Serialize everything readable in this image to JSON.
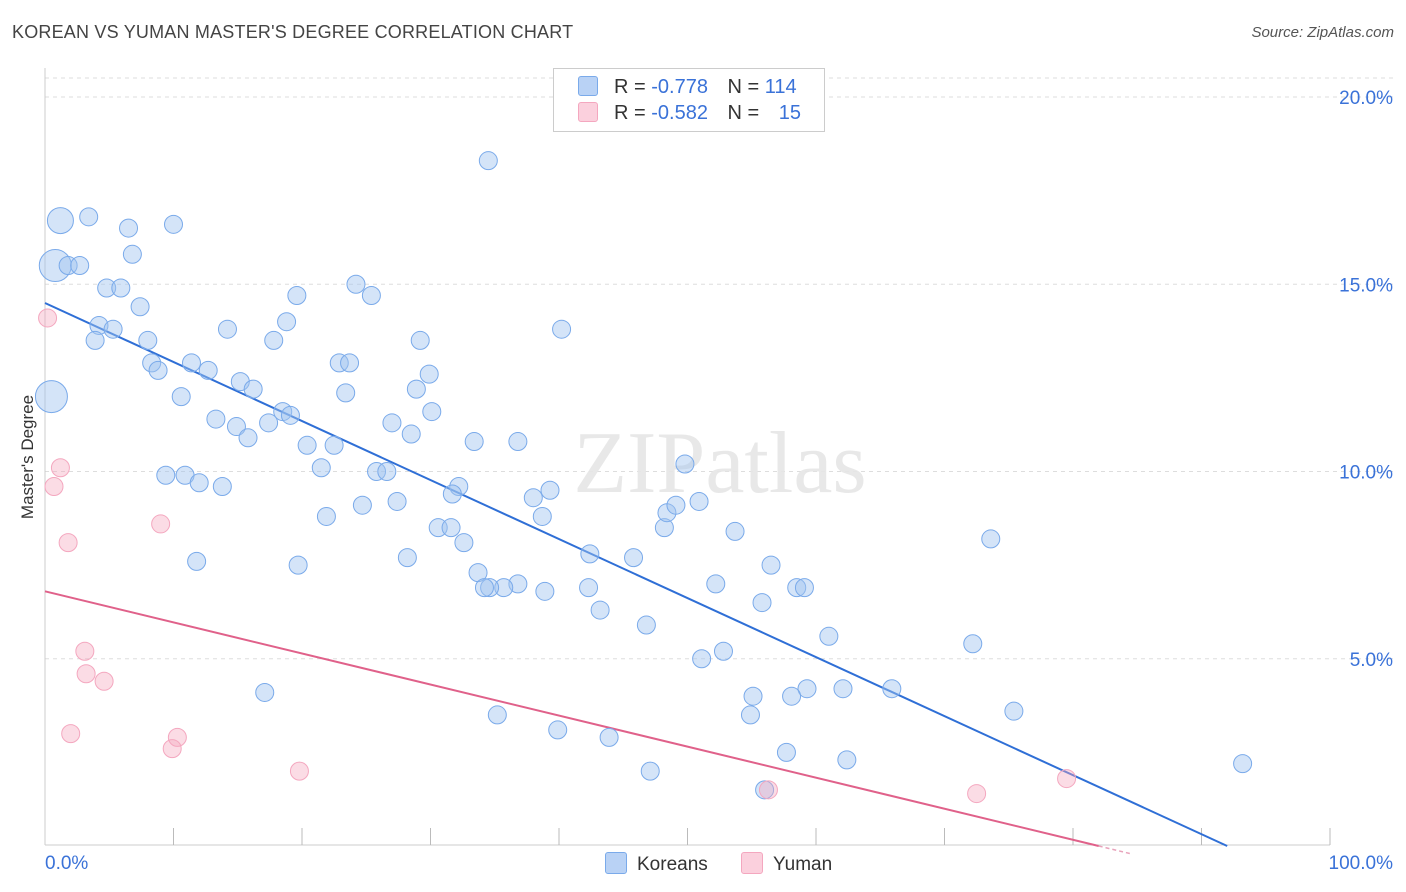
{
  "title": "KOREAN VS YUMAN MASTER'S DEGREE CORRELATION CHART",
  "source": "Source: ZipAtlas.com",
  "watermark": "ZIPatlas",
  "legend_top": {
    "rows": [
      {
        "r_label": "R =",
        "r_value": "-0.778",
        "n_label": "N =",
        "n_value": "114"
      },
      {
        "r_label": "R =",
        "r_value": "-0.582",
        "n_label": "N =",
        "n_value": "15"
      }
    ]
  },
  "chart_data": {
    "type": "scatter",
    "title": "KOREAN VS YUMAN MASTER'S DEGREE CORRELATION CHART",
    "xlabel": "",
    "ylabel": "Master's Degree",
    "xlim": [
      0,
      100
    ],
    "ylim": [
      0,
      21
    ],
    "x_tick_labels": [
      "0.0%",
      "100.0%"
    ],
    "y_ticks": [
      5,
      10,
      15,
      20
    ],
    "y_tick_labels": [
      "5.0%",
      "10.0%",
      "15.0%",
      "20.0%"
    ],
    "grid": true,
    "legend_position": "bottom",
    "series": [
      {
        "name": "Koreans",
        "color": "#7aaaea",
        "line_color": "#2f6fd6",
        "r": -0.778,
        "n": 114,
        "trend": {
          "x0": 0,
          "y0": 14.5,
          "x1": 92,
          "y1": 0
        },
        "points": [
          [
            1.2,
            16.7,
            2
          ],
          [
            3.4,
            16.8,
            1
          ],
          [
            6.5,
            16.5,
            1
          ],
          [
            10.0,
            16.6,
            1
          ],
          [
            0.8,
            15.5,
            3
          ],
          [
            1.8,
            15.5,
            1
          ],
          [
            2.7,
            15.5,
            1
          ],
          [
            6.8,
            15.8,
            1
          ],
          [
            4.8,
            14.9,
            1
          ],
          [
            5.9,
            14.9,
            1
          ],
          [
            7.4,
            14.4,
            1
          ],
          [
            4.2,
            13.9,
            1
          ],
          [
            5.3,
            13.8,
            1
          ],
          [
            3.9,
            13.5,
            1
          ],
          [
            8.0,
            13.5,
            1
          ],
          [
            8.3,
            12.9,
            1
          ],
          [
            8.8,
            12.7,
            1
          ],
          [
            11.4,
            12.9,
            1
          ],
          [
            12.7,
            12.7,
            1
          ],
          [
            14.2,
            13.8,
            1
          ],
          [
            15.2,
            12.4,
            1
          ],
          [
            16.2,
            12.2,
            1
          ],
          [
            17.8,
            13.5,
            1
          ],
          [
            19.6,
            14.7,
            1
          ],
          [
            18.8,
            14.0,
            1
          ],
          [
            24.2,
            15.0,
            1
          ],
          [
            25.4,
            14.7,
            1
          ],
          [
            22.9,
            12.9,
            1
          ],
          [
            23.7,
            12.9,
            1
          ],
          [
            23.4,
            12.1,
            1
          ],
          [
            29.2,
            13.5,
            1
          ],
          [
            28.9,
            12.2,
            1
          ],
          [
            0.5,
            12.0,
            3
          ],
          [
            10.6,
            12.0,
            1
          ],
          [
            13.3,
            11.4,
            1
          ],
          [
            14.9,
            11.2,
            1
          ],
          [
            15.8,
            10.9,
            1
          ],
          [
            17.4,
            11.3,
            1
          ],
          [
            18.5,
            11.6,
            1
          ],
          [
            19.1,
            11.5,
            1
          ],
          [
            20.4,
            10.7,
            1
          ],
          [
            22.5,
            10.7,
            1
          ],
          [
            21.5,
            10.1,
            1
          ],
          [
            27.0,
            11.3,
            1
          ],
          [
            28.5,
            11.0,
            1
          ],
          [
            30.1,
            11.6,
            1
          ],
          [
            33.4,
            10.8,
            1
          ],
          [
            36.8,
            10.8,
            1
          ],
          [
            34.5,
            18.3,
            1
          ],
          [
            40.2,
            13.8,
            1
          ],
          [
            9.4,
            9.9,
            1
          ],
          [
            10.9,
            9.9,
            1
          ],
          [
            12.0,
            9.7,
            1
          ],
          [
            13.8,
            9.6,
            1
          ],
          [
            25.8,
            10.0,
            1
          ],
          [
            26.6,
            10.0,
            1
          ],
          [
            32.2,
            9.6,
            1
          ],
          [
            31.7,
            9.4,
            1
          ],
          [
            24.7,
            9.1,
            1
          ],
          [
            27.4,
            9.2,
            1
          ],
          [
            21.9,
            8.8,
            1
          ],
          [
            38.0,
            9.3,
            1
          ],
          [
            39.3,
            9.5,
            1
          ],
          [
            38.7,
            8.8,
            1
          ],
          [
            30.6,
            8.5,
            1
          ],
          [
            31.6,
            8.5,
            1
          ],
          [
            32.6,
            8.1,
            1
          ],
          [
            42.4,
            7.8,
            1
          ],
          [
            45.8,
            7.7,
            1
          ],
          [
            48.2,
            8.5,
            1
          ],
          [
            48.4,
            8.9,
            1
          ],
          [
            49.1,
            9.1,
            1
          ],
          [
            50.9,
            9.2,
            1
          ],
          [
            49.8,
            10.2,
            1
          ],
          [
            53.7,
            8.4,
            1
          ],
          [
            56.5,
            7.5,
            1
          ],
          [
            58.5,
            6.9,
            1
          ],
          [
            59.1,
            6.9,
            1
          ],
          [
            59.3,
            4.2,
            1
          ],
          [
            61.0,
            5.6,
            1
          ],
          [
            52.8,
            5.2,
            1
          ],
          [
            52.2,
            7.0,
            1
          ],
          [
            55.8,
            6.5,
            1
          ],
          [
            46.8,
            5.9,
            1
          ],
          [
            42.3,
            6.9,
            1
          ],
          [
            43.2,
            6.3,
            1
          ],
          [
            38.9,
            6.8,
            1
          ],
          [
            36.8,
            7.0,
            1
          ],
          [
            35.7,
            6.9,
            1
          ],
          [
            34.6,
            6.9,
            1
          ],
          [
            33.7,
            7.3,
            1
          ],
          [
            28.2,
            7.7,
            1
          ],
          [
            19.7,
            7.5,
            1
          ],
          [
            11.8,
            7.6,
            1
          ],
          [
            17.1,
            4.1,
            1
          ],
          [
            35.2,
            3.5,
            1
          ],
          [
            39.9,
            3.1,
            1
          ],
          [
            43.9,
            2.9,
            1
          ],
          [
            47.1,
            2.0,
            1
          ],
          [
            51.1,
            5.0,
            1
          ],
          [
            54.9,
            3.5,
            1
          ],
          [
            55.1,
            4.0,
            1
          ],
          [
            58.1,
            4.0,
            1
          ],
          [
            57.7,
            2.5,
            1
          ],
          [
            62.1,
            4.2,
            1
          ],
          [
            62.4,
            2.3,
            1
          ],
          [
            65.9,
            4.2,
            1
          ],
          [
            72.2,
            5.4,
            1
          ],
          [
            75.4,
            3.6,
            1
          ],
          [
            73.6,
            8.2,
            1
          ],
          [
            93.2,
            2.2,
            1
          ],
          [
            56.0,
            1.5,
            1
          ],
          [
            34.2,
            6.9,
            1
          ],
          [
            29.9,
            12.6,
            1
          ]
        ]
      },
      {
        "name": "Yuman",
        "color": "#f4a7bf",
        "line_color": "#e0618a",
        "r": -0.582,
        "n": 15,
        "trend": {
          "x0": 0,
          "y0": 6.8,
          "x1": 82,
          "y1": 0
        },
        "points": [
          [
            0.2,
            14.1,
            1
          ],
          [
            1.2,
            10.1,
            1
          ],
          [
            0.7,
            9.6,
            1
          ],
          [
            1.8,
            8.1,
            1
          ],
          [
            9.0,
            8.6,
            1
          ],
          [
            3.1,
            5.2,
            1
          ],
          [
            3.2,
            4.6,
            1
          ],
          [
            4.6,
            4.4,
            1
          ],
          [
            2.0,
            3.0,
            1
          ],
          [
            9.9,
            2.6,
            1
          ],
          [
            10.3,
            2.9,
            1
          ],
          [
            19.8,
            2.0,
            1
          ],
          [
            56.3,
            1.5,
            1
          ],
          [
            72.5,
            1.4,
            1
          ],
          [
            79.5,
            1.8,
            1
          ]
        ]
      }
    ]
  }
}
